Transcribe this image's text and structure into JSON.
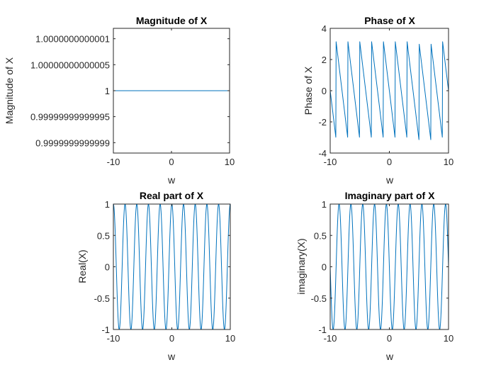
{
  "figure": {
    "background": "#ffffff",
    "line_color": "#0072BD"
  },
  "chart_data": [
    {
      "id": "magnitude",
      "type": "line",
      "title": "Magnitude of X",
      "xlabel": "w",
      "ylabel": "Magnitude of X",
      "xlim": [
        -10,
        10
      ],
      "ylim": [
        0.99999999999988,
        1.00000000000012
      ],
      "xticks": [
        -10,
        0,
        10
      ],
      "xtick_labels": [
        "-10",
        "0",
        "10"
      ],
      "yticks": [
        0.9999999999999,
        0.99999999999995,
        1,
        1.00000000000005,
        1.0000000000001
      ],
      "ytick_labels": [
        "0.9999999999999",
        "0.99999999999995",
        "1",
        "1.00000000000005",
        "1.0000000000001"
      ],
      "grid": false,
      "series": [
        {
          "function": "abs(exp(-j*pi*w))",
          "x_range": [
            -10,
            10
          ],
          "values_constant": 1
        }
      ]
    },
    {
      "id": "phase",
      "type": "line",
      "title": "Phase of X",
      "xlabel": "w",
      "ylabel": "Phase of X",
      "xlim": [
        -10,
        10
      ],
      "ylim": [
        -4,
        4
      ],
      "xticks": [
        -10,
        0,
        10
      ],
      "xtick_labels": [
        "-10",
        "0",
        "10"
      ],
      "yticks": [
        -4,
        -2,
        0,
        2,
        4
      ],
      "ytick_labels": [
        "-4",
        "-2",
        "0",
        "2",
        "4"
      ],
      "grid": false,
      "series": [
        {
          "function": "angle(exp(-j*pi*w))",
          "x_range": [
            -10,
            10
          ],
          "value_range": [
            -3.1416,
            3.1416
          ]
        }
      ]
    },
    {
      "id": "real",
      "type": "line",
      "title": "Real part of X",
      "xlabel": "w",
      "ylabel": "Real(X)",
      "xlim": [
        -10,
        10
      ],
      "ylim": [
        -1,
        1
      ],
      "xticks": [
        -10,
        0,
        10
      ],
      "xtick_labels": [
        "-10",
        "0",
        "10"
      ],
      "yticks": [
        -1,
        -0.5,
        0,
        0.5,
        1
      ],
      "ytick_labels": [
        "-1",
        "-0.5",
        "0",
        "0.5",
        "1"
      ],
      "grid": false,
      "series": [
        {
          "function": "cos(pi*w)",
          "x_range": [
            -10,
            10
          ],
          "value_range": [
            -1,
            1
          ]
        }
      ]
    },
    {
      "id": "imag",
      "type": "line",
      "title": "Imaginary part of X",
      "xlabel": "w",
      "ylabel": "imaginary(X)",
      "xlim": [
        -10,
        10
      ],
      "ylim": [
        -1,
        1
      ],
      "xticks": [
        -10,
        0,
        10
      ],
      "xtick_labels": [
        "-10",
        "0",
        "10"
      ],
      "yticks": [
        -1,
        -0.5,
        0,
        0.5,
        1
      ],
      "ytick_labels": [
        "-1",
        "-0.5",
        "0",
        "0.5",
        "1"
      ],
      "grid": false,
      "series": [
        {
          "function": "-sin(pi*w)",
          "x_range": [
            -10,
            10
          ],
          "value_range": [
            -1,
            1
          ]
        }
      ]
    }
  ]
}
